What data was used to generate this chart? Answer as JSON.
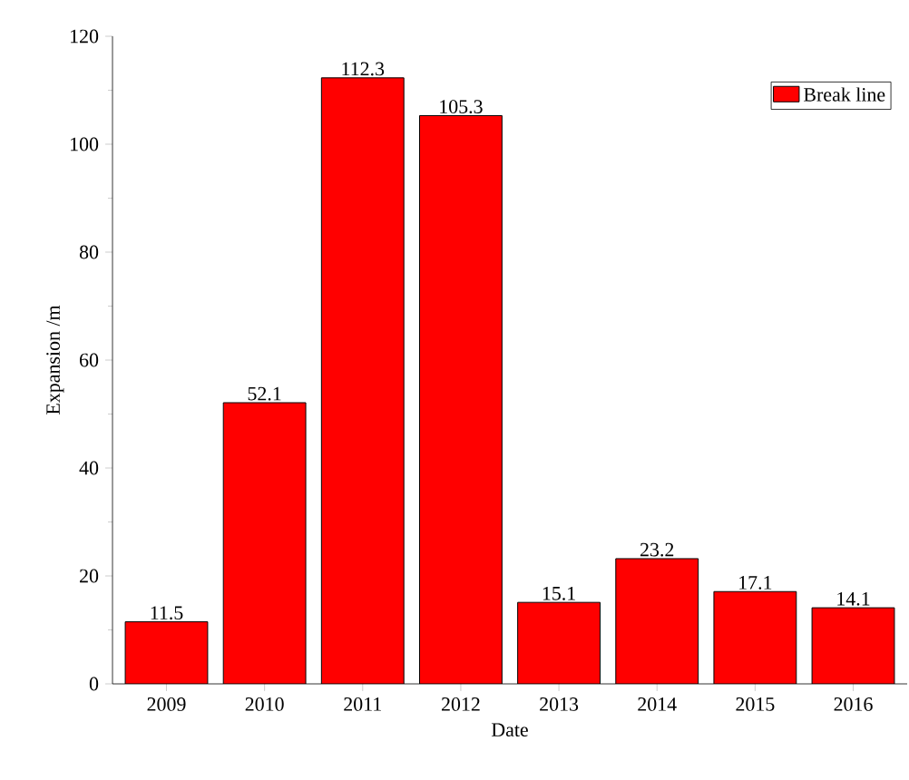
{
  "chart_data": {
    "type": "bar",
    "xlabel": "Date",
    "ylabel": "Expansion /m",
    "categories": [
      "2009",
      "2010",
      "2011",
      "2012",
      "2013",
      "2014",
      "2015",
      "2016"
    ],
    "series": [
      {
        "name": "Break line",
        "color": "#ff0000",
        "values": [
          11.5,
          52.1,
          112.3,
          105.3,
          15.1,
          23.2,
          17.1,
          14.1
        ]
      }
    ],
    "ylim": [
      0,
      120
    ],
    "yticks": [
      0,
      20,
      40,
      60,
      80,
      100,
      120
    ],
    "data_labels": true,
    "legend": "top right"
  }
}
